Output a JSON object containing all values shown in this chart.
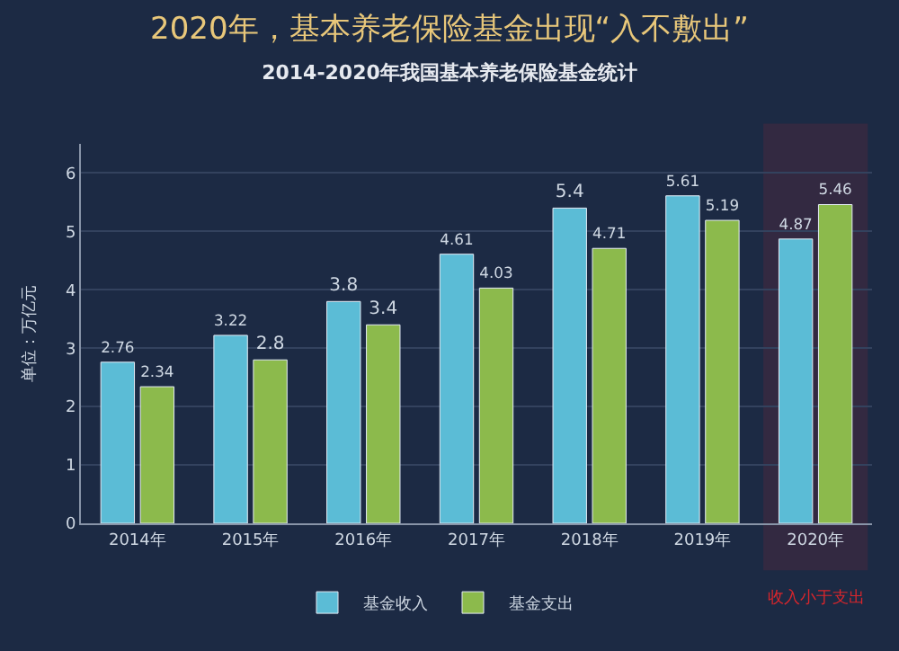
{
  "chart_data": {
    "type": "bar",
    "title": "2020年，基本养老保险基金出现“入不敷出”",
    "subtitle": "2014-2020年我国基本养老保险基金统计",
    "ylabel": "单位：万亿元",
    "categories": [
      "2014年",
      "2015年",
      "2016年",
      "2017年",
      "2018年",
      "2019年",
      "2020年"
    ],
    "series": [
      {
        "name": "基金收入",
        "color": "#5bbcd6",
        "values": [
          2.76,
          3.22,
          3.8,
          4.61,
          5.4,
          5.61,
          4.87
        ]
      },
      {
        "name": "基金支出",
        "color": "#8cba4c",
        "values": [
          2.34,
          2.8,
          3.4,
          4.03,
          4.71,
          5.19,
          5.46
        ]
      }
    ],
    "ylim": [
      0,
      6.5
    ],
    "yticks": [
      0,
      1,
      2,
      3,
      4,
      5,
      6
    ],
    "grid": "y",
    "legend": "bottom",
    "data_labels": true,
    "bands": [
      {
        "axis": "x",
        "from": "2020年",
        "to": "2020年",
        "label": "收入小于支出",
        "color": "#d9262c"
      }
    ]
  }
}
